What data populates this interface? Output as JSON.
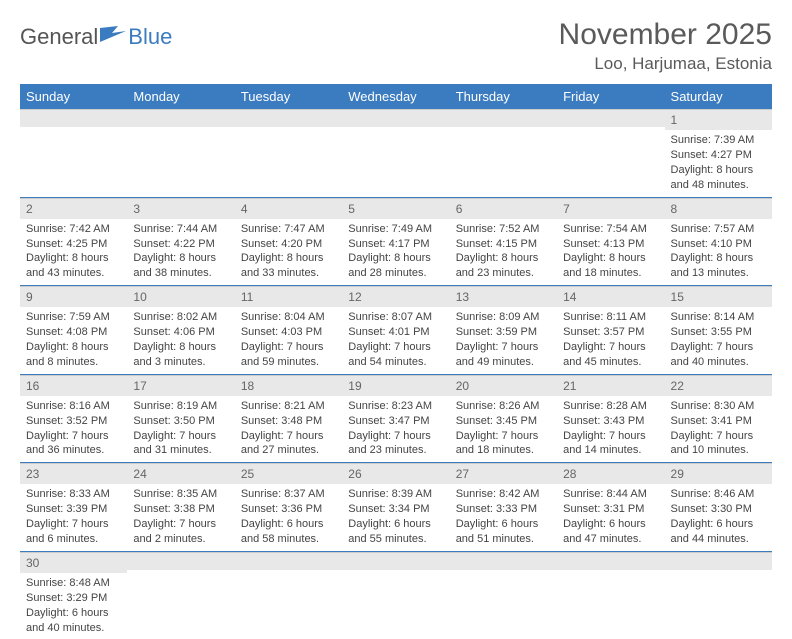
{
  "logo": {
    "general": "General",
    "blue": "Blue"
  },
  "title": "November 2025",
  "location": "Loo, Harjumaa, Estonia",
  "colors": {
    "header_bg": "#3b7bbf",
    "header_text": "#ffffff",
    "daynum_bg": "#e8e8e8",
    "row_divider": "#3b7bbf",
    "text": "#444444",
    "logo_gray": "#555555",
    "logo_blue": "#3b7bbf"
  },
  "day_headers": [
    "Sunday",
    "Monday",
    "Tuesday",
    "Wednesday",
    "Thursday",
    "Friday",
    "Saturday"
  ],
  "weeks": [
    [
      null,
      null,
      null,
      null,
      null,
      null,
      {
        "n": "1",
        "sunrise": "Sunrise: 7:39 AM",
        "sunset": "Sunset: 4:27 PM",
        "daylight": "Daylight: 8 hours and 48 minutes."
      }
    ],
    [
      {
        "n": "2",
        "sunrise": "Sunrise: 7:42 AM",
        "sunset": "Sunset: 4:25 PM",
        "daylight": "Daylight: 8 hours and 43 minutes."
      },
      {
        "n": "3",
        "sunrise": "Sunrise: 7:44 AM",
        "sunset": "Sunset: 4:22 PM",
        "daylight": "Daylight: 8 hours and 38 minutes."
      },
      {
        "n": "4",
        "sunrise": "Sunrise: 7:47 AM",
        "sunset": "Sunset: 4:20 PM",
        "daylight": "Daylight: 8 hours and 33 minutes."
      },
      {
        "n": "5",
        "sunrise": "Sunrise: 7:49 AM",
        "sunset": "Sunset: 4:17 PM",
        "daylight": "Daylight: 8 hours and 28 minutes."
      },
      {
        "n": "6",
        "sunrise": "Sunrise: 7:52 AM",
        "sunset": "Sunset: 4:15 PM",
        "daylight": "Daylight: 8 hours and 23 minutes."
      },
      {
        "n": "7",
        "sunrise": "Sunrise: 7:54 AM",
        "sunset": "Sunset: 4:13 PM",
        "daylight": "Daylight: 8 hours and 18 minutes."
      },
      {
        "n": "8",
        "sunrise": "Sunrise: 7:57 AM",
        "sunset": "Sunset: 4:10 PM",
        "daylight": "Daylight: 8 hours and 13 minutes."
      }
    ],
    [
      {
        "n": "9",
        "sunrise": "Sunrise: 7:59 AM",
        "sunset": "Sunset: 4:08 PM",
        "daylight": "Daylight: 8 hours and 8 minutes."
      },
      {
        "n": "10",
        "sunrise": "Sunrise: 8:02 AM",
        "sunset": "Sunset: 4:06 PM",
        "daylight": "Daylight: 8 hours and 3 minutes."
      },
      {
        "n": "11",
        "sunrise": "Sunrise: 8:04 AM",
        "sunset": "Sunset: 4:03 PM",
        "daylight": "Daylight: 7 hours and 59 minutes."
      },
      {
        "n": "12",
        "sunrise": "Sunrise: 8:07 AM",
        "sunset": "Sunset: 4:01 PM",
        "daylight": "Daylight: 7 hours and 54 minutes."
      },
      {
        "n": "13",
        "sunrise": "Sunrise: 8:09 AM",
        "sunset": "Sunset: 3:59 PM",
        "daylight": "Daylight: 7 hours and 49 minutes."
      },
      {
        "n": "14",
        "sunrise": "Sunrise: 8:11 AM",
        "sunset": "Sunset: 3:57 PM",
        "daylight": "Daylight: 7 hours and 45 minutes."
      },
      {
        "n": "15",
        "sunrise": "Sunrise: 8:14 AM",
        "sunset": "Sunset: 3:55 PM",
        "daylight": "Daylight: 7 hours and 40 minutes."
      }
    ],
    [
      {
        "n": "16",
        "sunrise": "Sunrise: 8:16 AM",
        "sunset": "Sunset: 3:52 PM",
        "daylight": "Daylight: 7 hours and 36 minutes."
      },
      {
        "n": "17",
        "sunrise": "Sunrise: 8:19 AM",
        "sunset": "Sunset: 3:50 PM",
        "daylight": "Daylight: 7 hours and 31 minutes."
      },
      {
        "n": "18",
        "sunrise": "Sunrise: 8:21 AM",
        "sunset": "Sunset: 3:48 PM",
        "daylight": "Daylight: 7 hours and 27 minutes."
      },
      {
        "n": "19",
        "sunrise": "Sunrise: 8:23 AM",
        "sunset": "Sunset: 3:47 PM",
        "daylight": "Daylight: 7 hours and 23 minutes."
      },
      {
        "n": "20",
        "sunrise": "Sunrise: 8:26 AM",
        "sunset": "Sunset: 3:45 PM",
        "daylight": "Daylight: 7 hours and 18 minutes."
      },
      {
        "n": "21",
        "sunrise": "Sunrise: 8:28 AM",
        "sunset": "Sunset: 3:43 PM",
        "daylight": "Daylight: 7 hours and 14 minutes."
      },
      {
        "n": "22",
        "sunrise": "Sunrise: 8:30 AM",
        "sunset": "Sunset: 3:41 PM",
        "daylight": "Daylight: 7 hours and 10 minutes."
      }
    ],
    [
      {
        "n": "23",
        "sunrise": "Sunrise: 8:33 AM",
        "sunset": "Sunset: 3:39 PM",
        "daylight": "Daylight: 7 hours and 6 minutes."
      },
      {
        "n": "24",
        "sunrise": "Sunrise: 8:35 AM",
        "sunset": "Sunset: 3:38 PM",
        "daylight": "Daylight: 7 hours and 2 minutes."
      },
      {
        "n": "25",
        "sunrise": "Sunrise: 8:37 AM",
        "sunset": "Sunset: 3:36 PM",
        "daylight": "Daylight: 6 hours and 58 minutes."
      },
      {
        "n": "26",
        "sunrise": "Sunrise: 8:39 AM",
        "sunset": "Sunset: 3:34 PM",
        "daylight": "Daylight: 6 hours and 55 minutes."
      },
      {
        "n": "27",
        "sunrise": "Sunrise: 8:42 AM",
        "sunset": "Sunset: 3:33 PM",
        "daylight": "Daylight: 6 hours and 51 minutes."
      },
      {
        "n": "28",
        "sunrise": "Sunrise: 8:44 AM",
        "sunset": "Sunset: 3:31 PM",
        "daylight": "Daylight: 6 hours and 47 minutes."
      },
      {
        "n": "29",
        "sunrise": "Sunrise: 8:46 AM",
        "sunset": "Sunset: 3:30 PM",
        "daylight": "Daylight: 6 hours and 44 minutes."
      }
    ],
    [
      {
        "n": "30",
        "sunrise": "Sunrise: 8:48 AM",
        "sunset": "Sunset: 3:29 PM",
        "daylight": "Daylight: 6 hours and 40 minutes."
      },
      null,
      null,
      null,
      null,
      null,
      null
    ]
  ]
}
